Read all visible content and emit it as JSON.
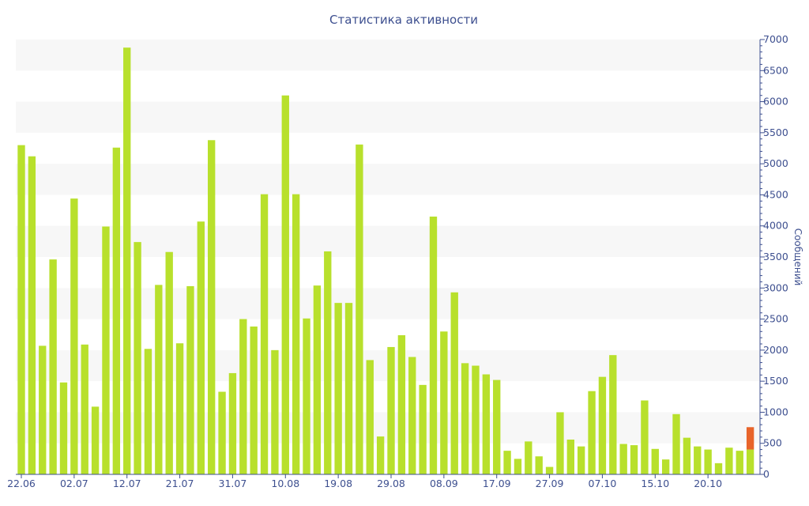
{
  "colors": {
    "bar": "#b8e02c",
    "highlight": "#e8642a",
    "band": "#f7f7f7",
    "axis": "#3d4f8f",
    "text": "#3d4f8f"
  },
  "chart_data": {
    "type": "bar",
    "title": "Статистика активности",
    "ylabel": "Сообщений",
    "y_axis_position": "right",
    "ylim": [
      0,
      7000
    ],
    "grid": "alternating horizontal bands",
    "yticks": [
      "0",
      "500",
      "1000",
      "1500",
      "2000",
      "2500",
      "3000",
      "3500",
      "4000",
      "4500",
      "5000",
      "5500",
      "6000",
      "6500",
      "7000"
    ],
    "xtick_labels": [
      {
        "index": 0,
        "label": "22.06"
      },
      {
        "index": 5,
        "label": "02.07"
      },
      {
        "index": 10,
        "label": "12.07"
      },
      {
        "index": 15,
        "label": "21.07"
      },
      {
        "index": 20,
        "label": "31.07"
      },
      {
        "index": 25,
        "label": "10.08"
      },
      {
        "index": 30,
        "label": "19.08"
      },
      {
        "index": 35,
        "label": "29.08"
      },
      {
        "index": 40,
        "label": "08.09"
      },
      {
        "index": 45,
        "label": "17.09"
      },
      {
        "index": 50,
        "label": "27.09"
      },
      {
        "index": 55,
        "label": "07.10"
      },
      {
        "index": 60,
        "label": "15.10"
      },
      {
        "index": 65,
        "label": "20.10"
      }
    ],
    "values": [
      5300,
      5120,
      2070,
      3460,
      1480,
      4440,
      2090,
      1090,
      3990,
      5260,
      6870,
      3740,
      2020,
      3050,
      3580,
      2110,
      3030,
      4070,
      5380,
      1330,
      1630,
      2500,
      2380,
      4510,
      2000,
      6100,
      4510,
      2510,
      3040,
      3590,
      2760,
      2760,
      5310,
      1840,
      610,
      2050,
      2240,
      1890,
      1440,
      4150,
      2300,
      2930,
      1790,
      1750,
      1610,
      1520,
      380,
      250,
      530,
      290,
      120,
      1000,
      560,
      450,
      1340,
      1570,
      1920,
      490,
      470,
      1190,
      410,
      240,
      970,
      590,
      450,
      400,
      180,
      430,
      380,
      400
    ],
    "highlight": {
      "index": 69,
      "base": 400,
      "value": 760
    }
  }
}
